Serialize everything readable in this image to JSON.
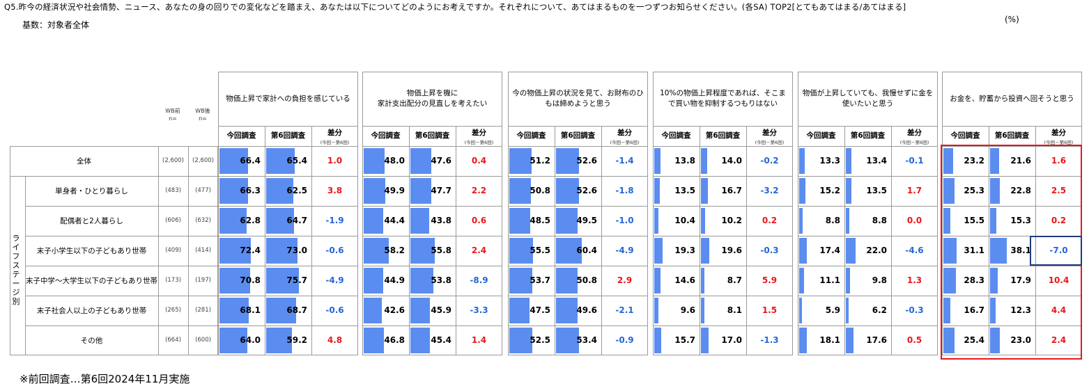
{
  "header": {
    "question": "Q5.昨今の経済状況や社会情勢、ニュース、あなたの身の回りでの変化などを踏まえ、あなたは以下についてどのようにお考えですか。それぞれについて、あてはまるものを一つずつお知らせください。(各SA) TOP2[とてもあてはまる/あてはまる]",
    "base": "基数：対象者全体",
    "unit": "(%)"
  },
  "n_headers": {
    "before": "WB前\nn=",
    "after": "WB後\nn="
  },
  "col_labels": {
    "current": "今回調査",
    "previous": "第6回調査",
    "diff": "差分",
    "diff_sub": "(今回－第6回)"
  },
  "vertical_label": "ライフステージ別",
  "footnote": "※前回調査…第6回2024年11月実施",
  "chart_data": {
    "type": "table",
    "scale_max": 100,
    "groups": [
      "物価上昇で家計への負担を感じている",
      "物価上昇を機に\n家計支出配分の見直しを考えたい",
      "今の物価上昇の状況を見て、お財布のひもは締めようと思う",
      "10%の物価上昇程度であれば、そこまで買い物を抑制するつもりはない",
      "物価が上昇していても、我慢せずに金を使いたいと思う",
      "お金を、貯蓄から投資へ回そうと思う"
    ],
    "rows": [
      {
        "label": "全体",
        "n_before": "(2,600)",
        "n_after": "(2,600)",
        "values": [
          [
            66.4,
            65.4,
            "1.0"
          ],
          [
            48.0,
            47.6,
            "0.4"
          ],
          [
            51.2,
            52.6,
            "-1.4"
          ],
          [
            13.8,
            14.0,
            "-0.2"
          ],
          [
            13.3,
            13.4,
            "-0.1"
          ],
          [
            23.2,
            21.6,
            "1.6"
          ]
        ]
      },
      {
        "label": "単身者・ひとり暮らし",
        "n_before": "(483)",
        "n_after": "(477)",
        "values": [
          [
            66.3,
            62.5,
            "3.8"
          ],
          [
            49.9,
            47.7,
            "2.2"
          ],
          [
            50.8,
            52.6,
            "-1.8"
          ],
          [
            13.5,
            16.7,
            "-3.2"
          ],
          [
            15.2,
            13.5,
            "1.7"
          ],
          [
            25.3,
            22.8,
            "2.5"
          ]
        ]
      },
      {
        "label": "配偶者と2人暮らし",
        "n_before": "(606)",
        "n_after": "(632)",
        "values": [
          [
            62.8,
            64.7,
            "-1.9"
          ],
          [
            44.4,
            43.8,
            "0.6"
          ],
          [
            48.5,
            49.5,
            "-1.0"
          ],
          [
            10.4,
            10.2,
            "0.2"
          ],
          [
            8.8,
            8.8,
            "0.0"
          ],
          [
            15.5,
            15.3,
            "0.2"
          ]
        ]
      },
      {
        "label": "末子小学生以下の子どもあり世帯",
        "n_before": "(409)",
        "n_after": "(414)",
        "values": [
          [
            72.4,
            73.0,
            "-0.6"
          ],
          [
            58.2,
            55.8,
            "2.4"
          ],
          [
            55.5,
            60.4,
            "-4.9"
          ],
          [
            19.3,
            19.6,
            "-0.3"
          ],
          [
            17.4,
            22.0,
            "-4.6"
          ],
          [
            31.1,
            38.1,
            "-7.0"
          ]
        ]
      },
      {
        "label": "末子中学～大学生以下の子どもあり世帯",
        "n_before": "(173)",
        "n_after": "(197)",
        "values": [
          [
            70.8,
            75.7,
            "-4.9"
          ],
          [
            44.9,
            53.8,
            "-8.9"
          ],
          [
            53.7,
            50.8,
            "2.9"
          ],
          [
            14.6,
            8.7,
            "5.9"
          ],
          [
            11.1,
            9.8,
            "1.3"
          ],
          [
            28.3,
            17.9,
            "10.4"
          ]
        ]
      },
      {
        "label": "末子社会人以上の子どもあり世帯",
        "n_before": "(265)",
        "n_after": "(281)",
        "values": [
          [
            68.1,
            68.7,
            "-0.6"
          ],
          [
            42.6,
            45.9,
            "-3.3"
          ],
          [
            47.5,
            49.6,
            "-2.1"
          ],
          [
            9.6,
            8.1,
            "1.5"
          ],
          [
            5.9,
            6.2,
            "-0.3"
          ],
          [
            16.7,
            12.3,
            "4.4"
          ]
        ]
      },
      {
        "label": "その他",
        "n_before": "(664)",
        "n_after": "(600)",
        "values": [
          [
            64.0,
            59.2,
            "4.8"
          ],
          [
            46.8,
            45.4,
            "1.4"
          ],
          [
            52.5,
            53.4,
            "-0.9"
          ],
          [
            15.7,
            17.0,
            "-1.3"
          ],
          [
            18.1,
            17.6,
            "0.5"
          ],
          [
            25.4,
            23.0,
            "2.4"
          ]
        ]
      }
    ],
    "highlight_group": 5,
    "highlight_cell": {
      "row": 3,
      "group": 5
    }
  }
}
